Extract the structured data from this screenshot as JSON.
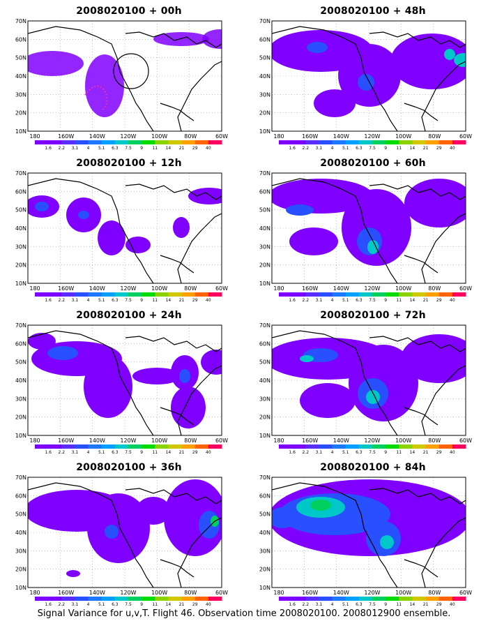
{
  "caption": "Signal Variance for u,v,T. Flight 46. Observation time 2008020100. 2008012900 ensemble.",
  "lat_labels": [
    "10N",
    "20N",
    "30N",
    "40N",
    "50N",
    "60N",
    "70N"
  ],
  "lon_labels": [
    "180",
    "160W",
    "140W",
    "120W",
    "100W",
    "80W",
    "60W"
  ],
  "colorbar": {
    "labels": [
      "1.6",
      "2.2",
      "3.1",
      "4",
      "5.1",
      "6.3",
      "7.5",
      "9",
      "11",
      "14",
      "21",
      "29",
      "40"
    ],
    "colors": [
      "#8000ff",
      "#7a00ff",
      "#5a2cff",
      "#2850ff",
      "#1e78ff",
      "#00a0ff",
      "#00c8c8",
      "#00d060",
      "#00dc00",
      "#8ad200",
      "#d2c800",
      "#ffa000",
      "#ff6400",
      "#ff0060"
    ]
  },
  "panels": [
    {
      "id": "p00",
      "title": "2008020100 + 00h",
      "lead_h": 0
    },
    {
      "id": "p12",
      "title": "2008020100 + 12h",
      "lead_h": 12
    },
    {
      "id": "p24",
      "title": "2008020100 + 24h",
      "lead_h": 24
    },
    {
      "id": "p36",
      "title": "2008020100 + 36h",
      "lead_h": 36
    },
    {
      "id": "p48",
      "title": "2008020100 + 48h",
      "lead_h": 48
    },
    {
      "id": "p60",
      "title": "2008020100 + 60h",
      "lead_h": 60
    },
    {
      "id": "p72",
      "title": "2008020100 + 72h",
      "lead_h": 72
    },
    {
      "id": "p84",
      "title": "2008020100 + 84h",
      "lead_h": 84
    }
  ]
}
